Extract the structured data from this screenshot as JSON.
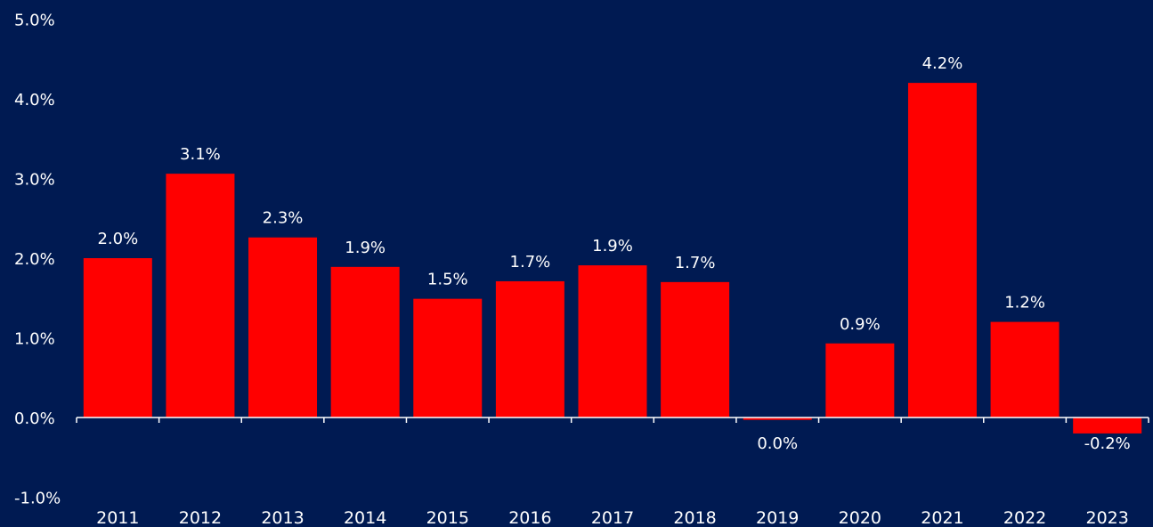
{
  "colors": {
    "background": "#001a52",
    "bar": "#ff0000",
    "text": "#ffffff",
    "axis": "#ffffff"
  },
  "chart_data": {
    "type": "bar",
    "title": "",
    "xlabel": "",
    "ylabel": "",
    "categories": [
      "2011",
      "2012",
      "2013",
      "2014",
      "2015",
      "2016",
      "2017",
      "2018",
      "2019",
      "2020",
      "2021",
      "2022",
      "2023"
    ],
    "values": [
      2.0,
      3.06,
      2.26,
      1.89,
      1.49,
      1.71,
      1.91,
      1.7,
      -0.03,
      0.93,
      4.2,
      1.2,
      -0.2
    ],
    "data_labels": [
      "2.0%",
      "3.1%",
      "2.3%",
      "1.9%",
      "1.5%",
      "1.7%",
      "1.9%",
      "1.7%",
      "0.0%",
      "0.9%",
      "4.2%",
      "1.2%",
      "-0.2%"
    ],
    "y_ticks": [
      5.0,
      4.0,
      3.0,
      2.0,
      1.0,
      0.0,
      -1.0
    ],
    "y_tick_labels": [
      "5.0%",
      "4.0%",
      "3.0%",
      "2.0%",
      "1.0%",
      "0.0%",
      "-1.0%"
    ],
    "ylim": [
      -1.0,
      5.0
    ],
    "grid": false,
    "legend": "none"
  }
}
